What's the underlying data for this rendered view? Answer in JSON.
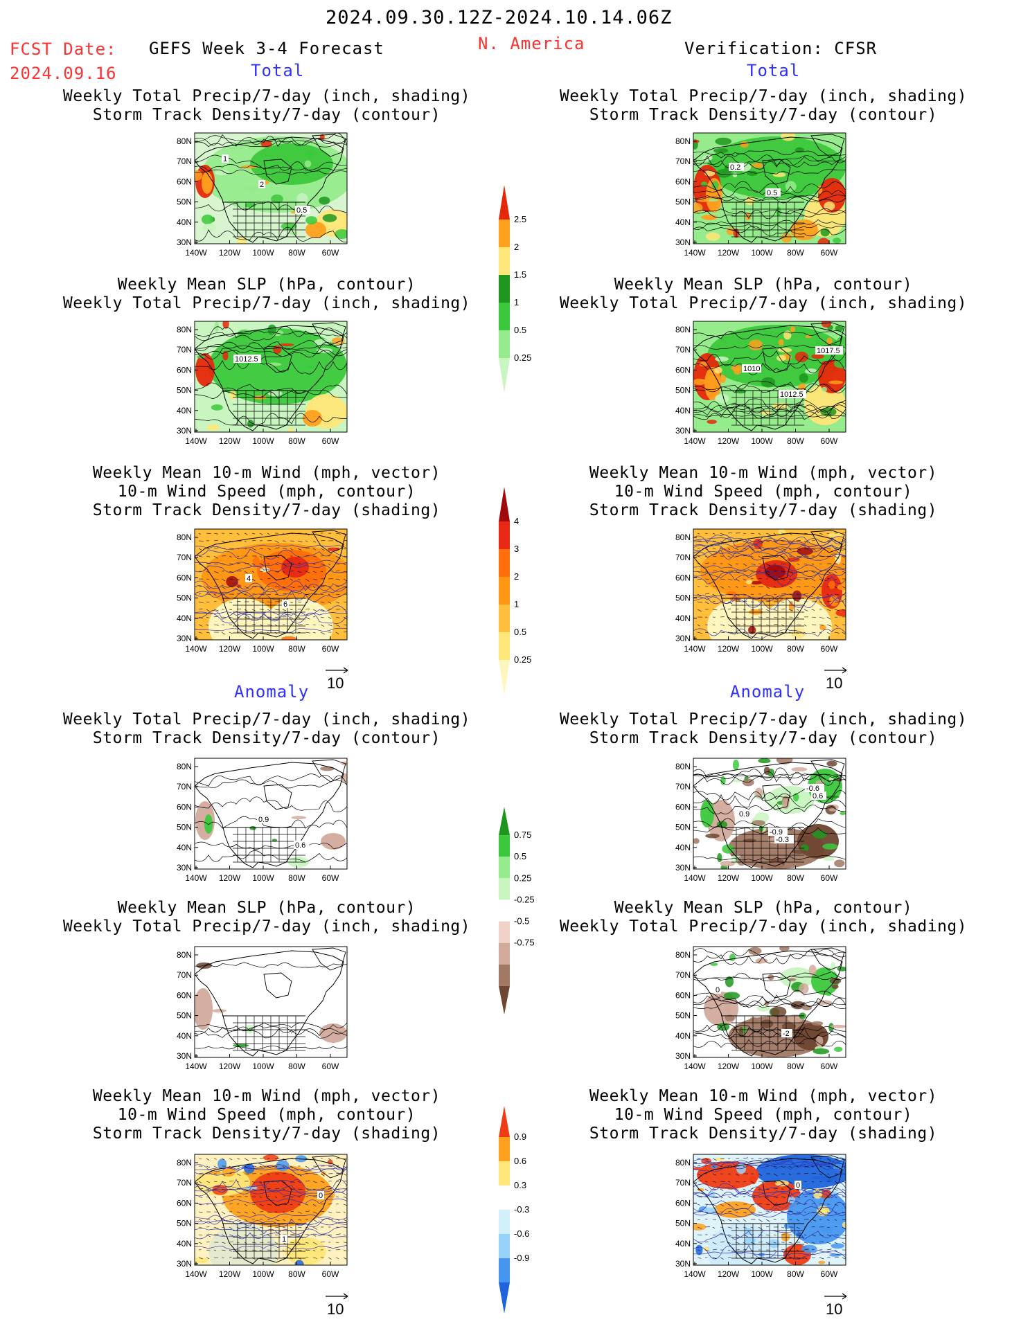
{
  "header": {
    "period": "2024.09.30.12Z-2024.10.14.06Z",
    "fcst_label": "FCST Date:",
    "fcst_date": "2024.09.16",
    "model": "GEFS Week 3-4 Forecast",
    "region": "N. America",
    "verification": "Verification: CFSR"
  },
  "sections": {
    "total": "Total",
    "anomaly": "Anomaly"
  },
  "axes": {
    "lat": [
      "80N",
      "70N",
      "60N",
      "50N",
      "40N",
      "30N"
    ],
    "lon": [
      "140W",
      "120W",
      "100W",
      "80W",
      "60W"
    ]
  },
  "vector_ref": "10",
  "panels": {
    "t_p1": [
      "Weekly Total Precip/7-day (inch, shading)",
      "Storm Track Density/7-day (contour)"
    ],
    "t_p2": [
      "Weekly Mean SLP (hPa, contour)",
      "Weekly Total Precip/7-day (inch, shading)"
    ],
    "t_p3": [
      "Weekly Mean 10-m Wind (mph, vector)",
      "10-m Wind Speed (mph, contour)",
      "Storm Track Density/7-day (shading)"
    ],
    "a_p1": [
      "Weekly Total Precip/7-day (inch, shading)",
      "Storm Track Density/7-day (contour)"
    ],
    "a_p2": [
      "Weekly Mean SLP (hPa, contour)",
      "Weekly Total Precip/7-day (inch, shading)"
    ],
    "a_p3": [
      "Weekly Mean 10-m Wind (mph, vector)",
      "10-m Wind Speed (mph, contour)",
      "Storm Track Density/7-day (shading)"
    ]
  },
  "map_labels": {
    "L1": [
      "1",
      "2",
      "0.5"
    ],
    "R1": [
      "0.2",
      "0.5"
    ],
    "L2": [
      "1012.5"
    ],
    "R2": [
      "1010",
      "1012.5",
      "1017.5"
    ],
    "L3": [
      "4",
      "6"
    ],
    "R3": [],
    "L4": [
      "0.9",
      "0.6"
    ],
    "R4": [
      "-0.9",
      "-0.6",
      "0.9",
      "-0.3",
      "0.6"
    ],
    "L5": [],
    "R5": [
      "-2",
      "0"
    ],
    "L6": [
      "1",
      "0"
    ],
    "R6": [
      "0"
    ]
  },
  "chart_data": [
    {
      "type": "heatmap",
      "name": "precip_total_colorbar",
      "levels": [
        "0.25",
        "0.5",
        "1",
        "1.5",
        "2",
        "2.5"
      ],
      "colors": [
        "#c8f5c0",
        "#96eb8c",
        "#3cc83c",
        "#1e961e",
        "#ffe678",
        "#ffa01e",
        "#e6280a"
      ]
    },
    {
      "type": "heatmap",
      "name": "storm_track_total_colorbar",
      "levels": [
        "0.25",
        "0.5",
        "1",
        "2",
        "3",
        "4"
      ],
      "colors": [
        "#fff5be",
        "#ffe678",
        "#ffbe3c",
        "#ff9614",
        "#ff6e0a",
        "#e62814",
        "#a00a0a"
      ]
    },
    {
      "type": "heatmap",
      "name": "precip_anomaly_colorbar",
      "levels": [
        "-0.75",
        "-0.5",
        "-0.25",
        "0.25",
        "0.5",
        "0.75"
      ],
      "colors": [
        "#6e4632",
        "#a07864",
        "#d2aa9b",
        "#f0d2c8",
        "#ffffff",
        "#c8f5c0",
        "#96eb8c",
        "#3cc83c",
        "#1e961e"
      ]
    },
    {
      "type": "heatmap",
      "name": "storm_track_anomaly_colorbar",
      "levels": [
        "-0.9",
        "-0.6",
        "-0.3",
        "0.3",
        "0.6",
        "0.9"
      ],
      "colors": [
        "#1e64dc",
        "#4696f0",
        "#96d2fa",
        "#d2f0fa",
        "#ffffff",
        "#ffe678",
        "#ffa01e",
        "#f03c14"
      ]
    }
  ],
  "colors": {
    "header_red": "#ff3030",
    "header_blue": "#3030ff",
    "wind_contour": "#3030b0"
  }
}
